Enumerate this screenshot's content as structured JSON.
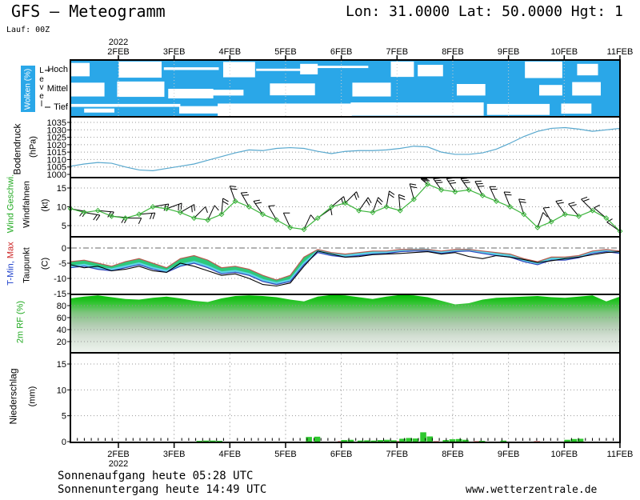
{
  "header": {
    "title": "GFS — Meteogramm",
    "coords": "Lon: 31.0000 Lat: 50.0000 Hgt: 1",
    "run": "Lauf: 00Z"
  },
  "footer": {
    "sunrise": "Sonnenaufgang heute 05:28 UTC",
    "sunset": "Sonnenuntergang heute 14:49 UTC",
    "site": "www.wetterzentrale.de"
  },
  "colors": {
    "cloud_blue": "#2AA7E8",
    "pressure_line": "#58A8CE",
    "wind_green": "#3CB43C",
    "temp_fill": "#2EC97B",
    "temp_cyan": "#5FD0E8",
    "tmax_line": "#B85C50",
    "tmin_line": "#3344BB",
    "dew_line": "#000000",
    "rf_top_green": "#00BB00",
    "precip_green": "#2EC82E",
    "precip_pink": "#E8A0A0",
    "grid": "#999999",
    "grid_light": "#BBBBBB"
  },
  "chart_data": {
    "type": "meteogram",
    "x_axis": {
      "year": "2022",
      "days": [
        "2FEB",
        "3FEB",
        "4FEB",
        "5FEB",
        "6FEB",
        "7FEB",
        "8FEB",
        "9FEB",
        "10FEB",
        "11FEB"
      ]
    },
    "panels": {
      "clouds": {
        "label": "Wolken (%)",
        "axis": "Level",
        "rows": [
          "Hoch",
          "Mittel",
          "Tief"
        ],
        "gaps": [
          [
            0,
            0,
            3.5,
            0.15,
            0.7
          ],
          [
            0,
            8.8,
            7.8,
            0.08,
            0.84
          ],
          [
            0,
            17,
            10,
            0.38,
            0.14
          ],
          [
            0,
            27.8,
            5.8,
            0.1,
            0.8
          ],
          [
            0,
            33.8,
            9,
            0.45,
            0.12
          ],
          [
            0,
            41.8,
            3.2,
            0.2,
            0.55
          ],
          [
            0,
            44.8,
            9.4,
            0.3,
            0.12
          ],
          [
            0,
            58.3,
            4.2,
            0.08,
            0.8
          ],
          [
            0,
            63.2,
            4.6,
            0.25,
            0.6
          ],
          [
            0,
            82.7,
            6.8,
            0.08,
            0.86
          ],
          [
            0,
            92.2,
            3.8,
            0.2,
            0.6
          ],
          [
            1,
            0,
            6.2,
            0.18,
            0.72
          ],
          [
            1,
            8.5,
            8.6,
            0.12,
            0.8
          ],
          [
            1,
            17.8,
            8.2,
            0.5,
            0.5
          ],
          [
            1,
            24.5,
            7,
            0.55,
            0.3
          ],
          [
            1,
            36.3,
            8.2,
            0.22,
            0.62
          ],
          [
            1,
            51.3,
            7,
            0.18,
            0.72
          ],
          [
            1,
            70.3,
            5.2,
            0.25,
            0.6
          ],
          [
            1,
            85.3,
            4.2,
            0.3,
            0.55
          ],
          [
            1,
            91.3,
            5.2,
            0.15,
            0.7
          ],
          [
            2,
            0,
            20,
            0.3,
            0.16
          ],
          [
            2,
            2.5,
            5.5,
            0.55,
            0.22
          ],
          [
            2,
            19.8,
            7.2,
            0.42,
            0.4
          ],
          [
            2,
            26.8,
            24.4,
            0.28,
            0.68
          ],
          [
            2,
            51,
            24.2,
            0.22,
            0.72
          ],
          [
            2,
            75.8,
            11.4,
            0.3,
            0.6
          ],
          [
            2,
            89.3,
            5.5,
            0.28,
            0.55
          ]
        ]
      },
      "pressure": {
        "label": "Bodendruck",
        "unit": "(hPa)",
        "ticks": [
          "1035",
          "1030",
          "1025",
          "1020",
          "1015",
          "1010",
          "1005",
          "1000"
        ],
        "tick_values": [
          1035,
          1030,
          1025,
          1020,
          1015,
          1010,
          1005,
          1000
        ],
        "range": [
          1000,
          1035
        ],
        "values": [
          1005.5,
          1007,
          1008,
          1007.5,
          1005,
          1003,
          1002.5,
          1004,
          1005.5,
          1007,
          1009.5,
          1012,
          1014.5,
          1016.5,
          1016,
          1017.5,
          1018,
          1017.5,
          1015.5,
          1014,
          1015.5,
          1016,
          1016,
          1016.5,
          1017.5,
          1019,
          1018.5,
          1015,
          1013.5,
          1013.5,
          1014.5,
          1017,
          1021,
          1025.5,
          1029,
          1031,
          1031.5,
          1030.5,
          1029,
          1030,
          1031
        ]
      },
      "wind": {
        "label_speed": "Wind Geschwi.",
        "label_barbs": "Windfahnen",
        "unit": "(kt)",
        "ticks": [
          "15",
          "10",
          "5"
        ],
        "tick_values": [
          15,
          10,
          5
        ],
        "values": [
          9.5,
          8.5,
          9,
          7.5,
          7,
          8,
          10,
          9.5,
          8.5,
          7,
          6.5,
          8,
          11.5,
          10,
          8,
          6.5,
          4.5,
          4,
          7,
          10,
          11,
          9,
          8.5,
          10,
          9,
          12,
          16,
          14.5,
          14,
          14.5,
          13,
          11.5,
          10,
          8,
          4.5,
          6,
          8,
          7.5,
          9,
          7,
          3.5
        ],
        "barb_dirs": [
          100,
          100,
          95,
          95,
          90,
          85,
          80,
          70,
          60,
          45,
          25,
          5,
          -20,
          -30,
          -35,
          -30,
          -25,
          25,
          55,
          50,
          45,
          35,
          20,
          10,
          -5,
          -15,
          -25,
          -30,
          -32,
          -30,
          -28,
          -25,
          -22,
          -18,
          20,
          -30,
          -35,
          -40,
          -45,
          -50,
          -55
        ]
      },
      "temp": {
        "label_min": "T-Min,",
        "label_max": " Max",
        "label_dew": "Taupunkt",
        "unit": "(C)",
        "ticks": [
          "0",
          "-5",
          "-10",
          "-15"
        ],
        "tick_values": [
          0,
          -5,
          -10,
          -15
        ],
        "tmax": [
          -4.5,
          -4,
          -5,
          -6,
          -4.5,
          -3.5,
          -5,
          -6.5,
          -3.5,
          -2.5,
          -4,
          -6.5,
          -6,
          -7,
          -9,
          -10.5,
          -9,
          -3,
          -0.5,
          -1.5,
          -2,
          -1.5,
          -1,
          -1,
          -0.5,
          -0.5,
          -0.5,
          -1,
          -0.5,
          -0.5,
          -1,
          -1.5,
          -2,
          -3.5,
          -4.5,
          -3,
          -3,
          -2.5,
          -1,
          -0.5,
          -1
        ],
        "tmin": [
          -6.5,
          -6,
          -7,
          -7.5,
          -6.5,
          -5.5,
          -7,
          -8,
          -6,
          -5,
          -6.5,
          -8.5,
          -8,
          -9,
          -11,
          -12,
          -11,
          -5.5,
          -1.5,
          -2.5,
          -3,
          -2.5,
          -2,
          -1.8,
          -1.2,
          -1,
          -1,
          -1.8,
          -1.2,
          -1,
          -1.8,
          -2.5,
          -3,
          -4.5,
          -5.5,
          -4,
          -4,
          -3.2,
          -1.8,
          -1.2,
          -1.8
        ],
        "dew": [
          -5.5,
          -6.5,
          -6,
          -7.5,
          -7,
          -6,
          -7.5,
          -8,
          -5,
          -6,
          -7.5,
          -9,
          -8.5,
          -10,
          -12,
          -12.5,
          -11.5,
          -6,
          -1,
          -2,
          -3,
          -2.8,
          -2.2,
          -2,
          -1.8,
          -1.5,
          -1.2,
          -2,
          -1.5,
          -2.8,
          -3.5,
          -2.5,
          -3,
          -3.8,
          -4.8,
          -4.2,
          -3.5,
          -3,
          -2.2,
          -1.5,
          -1.2
        ]
      },
      "rf": {
        "label": "2m RF (%)",
        "ticks": [
          "80",
          "60",
          "40",
          "20"
        ],
        "tick_values": [
          80,
          60,
          40,
          20
        ],
        "values": [
          92,
          95,
          97,
          94,
          91,
          90,
          93,
          95,
          92,
          88,
          86,
          92,
          96,
          97,
          96,
          94,
          90,
          87,
          95,
          99,
          97,
          94,
          91,
          95,
          98,
          97,
          94,
          88,
          82,
          84,
          90,
          93,
          94,
          95,
          96,
          94,
          93,
          95,
          97,
          87,
          95
        ]
      },
      "precip": {
        "label": "Niederschlag",
        "unit": "(mm)",
        "ticks": [
          "15",
          "10",
          "5",
          "0"
        ],
        "tick_values": [
          15,
          10,
          5,
          0
        ],
        "bars": [
          [
            23.5,
            0.15
          ],
          [
            24.7,
            0.2
          ],
          [
            25.9,
            0.2
          ],
          [
            27.1,
            0.15
          ],
          [
            43.4,
            0.9
          ],
          [
            44.9,
            0.95
          ],
          [
            49.8,
            0.3
          ],
          [
            51,
            0.35
          ],
          [
            52.8,
            0.2
          ],
          [
            54,
            0.25
          ],
          [
            55.2,
            0.2
          ],
          [
            56.4,
            0.3
          ],
          [
            57.6,
            0.35
          ],
          [
            58.8,
            0.25
          ],
          [
            60.4,
            0.55
          ],
          [
            61.6,
            0.7
          ],
          [
            62.8,
            0.6
          ],
          [
            64.2,
            1.8
          ],
          [
            65.4,
            1.0
          ],
          [
            68.3,
            0.3
          ],
          [
            69.5,
            0.45
          ],
          [
            70.7,
            0.5
          ],
          [
            71.9,
            0.35
          ],
          [
            74.9,
            0.15
          ],
          [
            78.8,
            0.2
          ],
          [
            90.4,
            0.35
          ],
          [
            91.6,
            0.5
          ],
          [
            92.8,
            0.55
          ]
        ],
        "pink": [
          [
            24.1,
            0.1
          ],
          [
            49.2,
            0.1
          ],
          [
            59.4,
            0.1
          ],
          [
            66.6,
            0.12
          ],
          [
            73.9,
            0.1
          ],
          [
            84.9,
            0.08
          ]
        ]
      }
    }
  }
}
